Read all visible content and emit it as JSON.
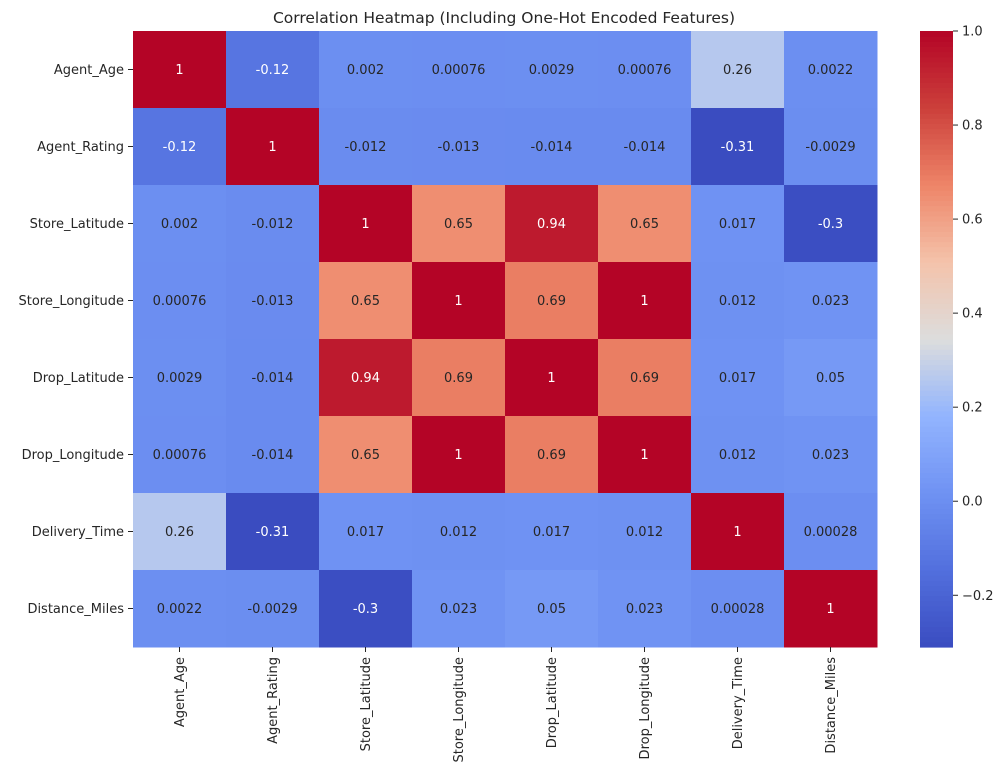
{
  "chart_data": {
    "type": "heatmap",
    "title": "Correlation Heatmap (Including One-Hot Encoded Features)",
    "xlabel": "",
    "ylabel": "",
    "rows": [
      "Agent_Age",
      "Agent_Rating",
      "Store_Latitude",
      "Store_Longitude",
      "Drop_Latitude",
      "Drop_Longitude",
      "Delivery_Time",
      "Distance_Miles"
    ],
    "columns": [
      "Agent_Age",
      "Agent_Rating",
      "Store_Latitude",
      "Store_Longitude",
      "Drop_Latitude",
      "Drop_Longitude",
      "Delivery_Time",
      "Distance_Miles"
    ],
    "values": [
      [
        1,
        -0.12,
        0.002,
        0.00076,
        0.0029,
        0.00076,
        0.26,
        0.0022
      ],
      [
        -0.12,
        1,
        -0.012,
        -0.013,
        -0.014,
        -0.014,
        -0.31,
        -0.0029
      ],
      [
        0.002,
        -0.012,
        1,
        0.65,
        0.94,
        0.65,
        0.017,
        -0.3
      ],
      [
        0.00076,
        -0.013,
        0.65,
        1,
        0.69,
        1,
        0.012,
        0.023
      ],
      [
        0.0029,
        -0.014,
        0.94,
        0.69,
        1,
        0.69,
        0.017,
        0.05
      ],
      [
        0.00076,
        -0.014,
        0.65,
        1,
        0.69,
        1,
        0.012,
        0.023
      ],
      [
        0.26,
        -0.31,
        0.017,
        0.012,
        0.017,
        0.012,
        1,
        0.00028
      ],
      [
        0.0022,
        -0.0029,
        -0.3,
        0.023,
        0.05,
        0.023,
        0.00028,
        1
      ]
    ],
    "annotations": [
      [
        "1",
        "-0.12",
        "0.002",
        "0.00076",
        "0.0029",
        "0.00076",
        "0.26",
        "0.0022"
      ],
      [
        "-0.12",
        "1",
        "-0.012",
        "-0.013",
        "-0.014",
        "-0.014",
        "-0.31",
        "-0.0029"
      ],
      [
        "0.002",
        "-0.012",
        "1",
        "0.65",
        "0.94",
        "0.65",
        "0.017",
        "-0.3"
      ],
      [
        "0.00076",
        "-0.013",
        "0.65",
        "1",
        "0.69",
        "1",
        "0.012",
        "0.023"
      ],
      [
        "0.0029",
        "-0.014",
        "0.94",
        "0.69",
        "1",
        "0.69",
        "0.017",
        "0.05"
      ],
      [
        "0.00076",
        "-0.014",
        "0.65",
        "1",
        "0.69",
        "1",
        "0.012",
        "0.023"
      ],
      [
        "0.26",
        "-0.31",
        "0.017",
        "0.012",
        "0.017",
        "0.012",
        "1",
        "0.00028"
      ],
      [
        "0.0022",
        "-0.0029",
        "-0.3",
        "0.023",
        "0.05",
        "0.023",
        "0.00028",
        "1"
      ]
    ],
    "colormap": "coolwarm",
    "color_range": [
      -0.31,
      1
    ],
    "colorbar_ticks": [
      -0.2,
      0,
      0.2,
      0.4,
      0.6,
      0.8,
      1
    ],
    "colorbar_tick_labels": [
      "−0.2",
      "0.0",
      "0.2",
      "0.4",
      "0.6",
      "0.8",
      "1.0"
    ],
    "grid": false,
    "legend": "colorbar-right"
  }
}
